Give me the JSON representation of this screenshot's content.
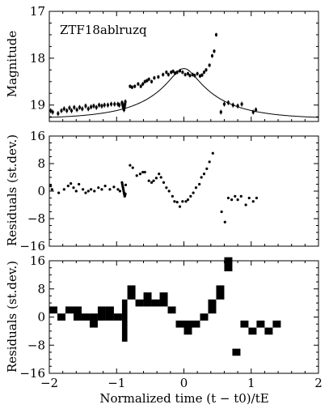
{
  "chart_data": [
    {
      "type": "scatter",
      "annotation": "ZTF18ablruzq",
      "ylabel": "Magnitude",
      "xlim": [
        -2,
        2
      ],
      "ylim": [
        19.35,
        17
      ],
      "y_inverted": true,
      "yticks": [
        17,
        18,
        19
      ],
      "ytick_labels": [
        "17",
        "18",
        "19"
      ],
      "xticks": [
        -2,
        -1,
        0,
        1,
        2
      ],
      "series": [
        {
          "style": "errorbar",
          "points": [
            [
              -1.98,
              19.12,
              0.05
            ],
            [
              -1.95,
              19.15,
              0.05
            ],
            [
              -1.87,
              19.18,
              0.05
            ],
            [
              -1.82,
              19.12,
              0.05
            ],
            [
              -1.78,
              19.08,
              0.05
            ],
            [
              -1.74,
              19.12,
              0.05
            ],
            [
              -1.7,
              19.06,
              0.05
            ],
            [
              -1.67,
              19.12,
              0.05
            ],
            [
              -1.63,
              19.05,
              0.05
            ],
            [
              -1.59,
              19.1,
              0.05
            ],
            [
              -1.55,
              19.05,
              0.05
            ],
            [
              -1.51,
              19.08,
              0.05
            ],
            [
              -1.46,
              19.02,
              0.05
            ],
            [
              -1.42,
              19.08,
              0.05
            ],
            [
              -1.38,
              19.04,
              0.05
            ],
            [
              -1.34,
              19.02,
              0.05
            ],
            [
              -1.3,
              19.05,
              0.05
            ],
            [
              -1.26,
              19.0,
              0.05
            ],
            [
              -1.22,
              19.02,
              0.05
            ],
            [
              -1.18,
              19.0,
              0.05
            ],
            [
              -1.13,
              19.0,
              0.05
            ],
            [
              -1.08,
              18.98,
              0.05
            ],
            [
              -1.03,
              18.98,
              0.05
            ],
            [
              -0.98,
              18.98,
              0.05
            ],
            [
              -0.96,
              19.0,
              0.05
            ],
            [
              -0.92,
              18.95,
              0.05
            ],
            [
              -0.915,
              18.97,
              0.05
            ],
            [
              -0.91,
              19.0,
              0.05
            ],
            [
              -0.905,
              19.03,
              0.05
            ],
            [
              -0.9,
              19.05,
              0.05
            ],
            [
              -0.895,
              19.08,
              0.05
            ],
            [
              -0.89,
              19.1,
              0.05
            ],
            [
              -0.885,
              19.06,
              0.05
            ],
            [
              -0.88,
              19.02,
              0.05
            ],
            [
              -0.875,
              18.98,
              0.05
            ],
            [
              -0.87,
              18.93,
              0.05
            ],
            [
              -0.8,
              18.6,
              0.04
            ],
            [
              -0.77,
              18.62,
              0.04
            ],
            [
              -0.73,
              18.6,
              0.04
            ],
            [
              -0.68,
              18.55,
              0.04
            ],
            [
              -0.64,
              18.6,
              0.04
            ],
            [
              -0.61,
              18.55,
              0.04
            ],
            [
              -0.58,
              18.5,
              0.04
            ],
            [
              -0.55,
              18.48,
              0.04
            ],
            [
              -0.52,
              18.45,
              0.04
            ],
            [
              -0.48,
              18.5,
              0.04
            ],
            [
              -0.44,
              18.42,
              0.04
            ],
            [
              -0.38,
              18.4,
              0.04
            ],
            [
              -0.31,
              18.35,
              0.04
            ],
            [
              -0.26,
              18.3,
              0.04
            ],
            [
              -0.23,
              18.35,
              0.04
            ],
            [
              -0.19,
              18.3,
              0.04
            ],
            [
              -0.16,
              18.28,
              0.04
            ],
            [
              -0.13,
              18.32,
              0.04
            ],
            [
              -0.1,
              18.3,
              0.04
            ],
            [
              -0.06,
              18.27,
              0.04
            ],
            [
              -0.02,
              18.3,
              0.04
            ],
            [
              0.02,
              18.35,
              0.04
            ],
            [
              0.06,
              18.33,
              0.04
            ],
            [
              0.09,
              18.37,
              0.04
            ],
            [
              0.13,
              18.35,
              0.04
            ],
            [
              0.16,
              18.37,
              0.04
            ],
            [
              0.2,
              18.33,
              0.04
            ],
            [
              0.24,
              18.38,
              0.04
            ],
            [
              0.27,
              18.36,
              0.04
            ],
            [
              0.3,
              18.3,
              0.04
            ],
            [
              0.33,
              18.25,
              0.04
            ],
            [
              0.38,
              18.15,
              0.04
            ],
            [
              0.42,
              17.95,
              0.04
            ],
            [
              0.45,
              17.85,
              0.04
            ],
            [
              0.48,
              17.5,
              0.04
            ],
            [
              0.55,
              19.15,
              0.05
            ],
            [
              0.6,
              18.98,
              0.05
            ],
            [
              0.66,
              18.95,
              0.05
            ],
            [
              0.73,
              19.0,
              0.05
            ],
            [
              0.8,
              19.02,
              0.05
            ],
            [
              0.86,
              18.98,
              0.05
            ],
            [
              1.03,
              19.15,
              0.05
            ],
            [
              1.07,
              19.1,
              0.05
            ]
          ]
        },
        {
          "style": "model-curve",
          "model": {
            "t0": 0.0,
            "tE": 1.0,
            "baseline": 19.3,
            "peak": 18.22
          }
        }
      ]
    },
    {
      "type": "scatter",
      "ylabel": "Residuals (st.dev.)",
      "xlim": [
        -2,
        2
      ],
      "ylim": [
        -16,
        16
      ],
      "yticks": [
        -16,
        -8,
        0,
        8,
        16
      ],
      "ytick_labels": [
        "−16",
        "−8",
        "0",
        "8",
        "16"
      ],
      "xticks": [
        -2,
        -1,
        0,
        1,
        2
      ],
      "points": [
        [
          -1.98,
          1.5
        ],
        [
          -1.96,
          0.5
        ],
        [
          -1.86,
          -0.5
        ],
        [
          -1.78,
          0.5
        ],
        [
          -1.72,
          1.5
        ],
        [
          -1.68,
          2.2
        ],
        [
          -1.64,
          1.0
        ],
        [
          -1.6,
          0.0
        ],
        [
          -1.56,
          2.0
        ],
        [
          -1.5,
          0.5
        ],
        [
          -1.46,
          -0.5
        ],
        [
          -1.42,
          0.0
        ],
        [
          -1.38,
          0.5
        ],
        [
          -1.33,
          0.0
        ],
        [
          -1.27,
          1.0
        ],
        [
          -1.22,
          0.5
        ],
        [
          -1.17,
          1.5
        ],
        [
          -1.1,
          0.5
        ],
        [
          -1.04,
          1.2
        ],
        [
          -0.98,
          0.5
        ],
        [
          -0.95,
          0.0
        ],
        [
          -0.92,
          2.5
        ],
        [
          -0.915,
          2.0
        ],
        [
          -0.91,
          1.5
        ],
        [
          -0.905,
          1.0
        ],
        [
          -0.9,
          0.5
        ],
        [
          -0.895,
          0.0
        ],
        [
          -0.89,
          -0.5
        ],
        [
          -0.885,
          -1.0
        ],
        [
          -0.88,
          -1.5
        ],
        [
          -0.875,
          -1.2
        ],
        [
          -0.87,
          -0.8
        ],
        [
          -0.865,
          1.8
        ],
        [
          -0.8,
          7.5
        ],
        [
          -0.76,
          6.8
        ],
        [
          -0.7,
          4.5
        ],
        [
          -0.65,
          5.0
        ],
        [
          -0.61,
          5.5
        ],
        [
          -0.58,
          5.5
        ],
        [
          -0.52,
          3.0
        ],
        [
          -0.48,
          2.5
        ],
        [
          -0.45,
          3.0
        ],
        [
          -0.41,
          3.8
        ],
        [
          -0.37,
          5.0
        ],
        [
          -0.34,
          4.0
        ],
        [
          -0.3,
          2.5
        ],
        [
          -0.26,
          1.0
        ],
        [
          -0.22,
          0.0
        ],
        [
          -0.17,
          -1.5
        ],
        [
          -0.14,
          -3.0
        ],
        [
          -0.1,
          -3.2
        ],
        [
          -0.06,
          -4.5
        ],
        [
          -0.02,
          -3.0
        ],
        [
          0.03,
          -3.0
        ],
        [
          0.06,
          -2.5
        ],
        [
          0.1,
          -1.5
        ],
        [
          0.14,
          -0.5
        ],
        [
          0.18,
          1.0
        ],
        [
          0.23,
          2.0
        ],
        [
          0.26,
          4.0
        ],
        [
          0.3,
          5.0
        ],
        [
          0.34,
          6.5
        ],
        [
          0.38,
          8.5
        ],
        [
          0.43,
          11.0
        ],
        [
          0.56,
          -6.0
        ],
        [
          0.61,
          -9.0
        ],
        [
          0.66,
          -2.0
        ],
        [
          0.71,
          -2.5
        ],
        [
          0.76,
          -1.5
        ],
        [
          0.8,
          -2.5
        ],
        [
          0.85,
          -1.5
        ],
        [
          0.92,
          -4.0
        ],
        [
          0.97,
          -2.0
        ],
        [
          1.03,
          -3.0
        ],
        [
          1.08,
          -2.0
        ]
      ]
    },
    {
      "type": "bar",
      "ylabel": "Residuals (st.dev.)",
      "xlabel": "Normalized time (t − t0)/tE",
      "xlim": [
        -2,
        2
      ],
      "ylim": [
        -16,
        16
      ],
      "yticks": [
        -16,
        -8,
        0,
        8,
        16
      ],
      "ytick_labels": [
        "−16",
        "−8",
        "0",
        "8",
        "16"
      ],
      "xticks": [
        -2,
        -1,
        0,
        1,
        2
      ],
      "xtick_labels": [
        "−2",
        "−1",
        "0",
        "1",
        "2"
      ],
      "bins": [
        [
          -2.0,
          -1.88,
          1.0,
          3.0
        ],
        [
          -1.88,
          -1.76,
          -1.0,
          1.0
        ],
        [
          -1.76,
          -1.64,
          1.0,
          3.0
        ],
        [
          -1.64,
          -1.52,
          -1.0,
          3.0
        ],
        [
          -1.52,
          -1.4,
          -1.0,
          1.0
        ],
        [
          -1.4,
          -1.28,
          -3.0,
          1.0
        ],
        [
          -1.28,
          -1.16,
          -1.0,
          3.0
        ],
        [
          -1.16,
          -1.04,
          -1.0,
          3.0
        ],
        [
          -1.04,
          -0.92,
          -1.0,
          1.0
        ],
        [
          -0.92,
          -0.84,
          -7.0,
          5.0
        ],
        [
          -0.84,
          -0.72,
          5.0,
          9.0
        ],
        [
          -0.72,
          -0.6,
          3.0,
          5.0
        ],
        [
          -0.6,
          -0.48,
          3.0,
          7.0
        ],
        [
          -0.48,
          -0.36,
          3.0,
          5.0
        ],
        [
          -0.36,
          -0.24,
          3.0,
          7.0
        ],
        [
          -0.24,
          -0.12,
          1.0,
          3.0
        ],
        [
          -0.12,
          0.0,
          -3.0,
          -1.0
        ],
        [
          0.0,
          0.12,
          -5.0,
          -1.0
        ],
        [
          0.12,
          0.24,
          -3.0,
          -1.0
        ],
        [
          0.24,
          0.36,
          -1.0,
          1.0
        ],
        [
          0.36,
          0.48,
          1.0,
          5.0
        ],
        [
          0.48,
          0.6,
          5.0,
          9.0
        ],
        [
          0.6,
          0.72,
          13.0,
          17.0
        ],
        [
          0.72,
          0.84,
          -9.0,
          -11.0
        ],
        [
          0.84,
          0.96,
          -1.0,
          -3.0
        ],
        [
          0.96,
          1.08,
          -3.0,
          -5.0
        ],
        [
          1.08,
          1.2,
          -1.0,
          -3.0
        ],
        [
          1.2,
          1.32,
          -3.0,
          -5.0
        ],
        [
          1.32,
          1.44,
          -1.0,
          -3.0
        ]
      ]
    }
  ]
}
